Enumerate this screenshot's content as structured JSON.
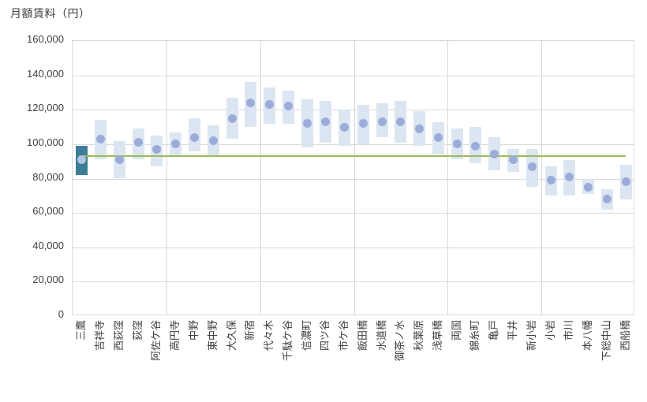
{
  "chart_data": {
    "type": "bar",
    "subtype": "floating-range-bars-with-median-dots",
    "title": "月額賃料（円）",
    "ylabel": "月額賃料（円）",
    "xlabel": "",
    "ylim": [
      0,
      160000
    ],
    "ytick_step": 20000,
    "ytick_labels": [
      "0",
      "20,000",
      "40,000",
      "60,000",
      "80,000",
      "100,000",
      "120,000",
      "140,000",
      "160,000"
    ],
    "grid": true,
    "x_gridline_every": 5,
    "legend_position": "none",
    "categories": [
      "三鷹",
      "吉祥寺",
      "西荻窪",
      "荻窪",
      "阿佐ケ谷",
      "高円寺",
      "中野",
      "東中野",
      "大久保",
      "新宿",
      "代々木",
      "千駄ケ谷",
      "信濃町",
      "四ツ谷",
      "市ケ谷",
      "飯田橋",
      "水道橋",
      "御茶ノ水",
      "秋葉原",
      "浅草橋",
      "両国",
      "錦糸町",
      "亀戸",
      "平井",
      "新小岩",
      "小岩",
      "市川",
      "本八幡",
      "下総中山",
      "西船橋"
    ],
    "series": [
      {
        "name": "range_min",
        "values": [
          82000,
          91000,
          80000,
          91000,
          87000,
          93000,
          96000,
          93000,
          103000,
          110000,
          112000,
          112000,
          98000,
          101000,
          99000,
          100000,
          104000,
          101000,
          99000,
          94000,
          91000,
          89000,
          85000,
          84000,
          75000,
          70000,
          70000,
          71000,
          62000,
          68000
        ]
      },
      {
        "name": "range_max",
        "values": [
          99000,
          114000,
          102000,
          109000,
          105000,
          107000,
          115000,
          111000,
          127000,
          136000,
          133000,
          131000,
          126000,
          125000,
          120000,
          123000,
          124000,
          125000,
          119000,
          113000,
          109000,
          110000,
          104000,
          97000,
          97000,
          87000,
          91000,
          80000,
          74000,
          88000
        ]
      },
      {
        "name": "median",
        "values": [
          91000,
          103000,
          91000,
          101000,
          97000,
          100000,
          104000,
          102000,
          115000,
          124000,
          123000,
          122000,
          112000,
          113000,
          110000,
          112000,
          113000,
          113000,
          109000,
          104000,
          100000,
          99000,
          94000,
          91000,
          87000,
          79000,
          81000,
          75000,
          68000,
          78000
        ]
      }
    ],
    "reference_line": {
      "value": 93000,
      "spans": "first-to-last-category"
    },
    "highlight": {
      "category": "三鷹",
      "index": 0
    },
    "colors": {
      "range_bar": "#dce6f2",
      "median_dot": "#9bacd8",
      "highlight_bar": "#3c7e98",
      "highlight_dot": "#b5c3e2",
      "reference_line": "#9bbb59",
      "gridline": "#d9d9d9",
      "text": "#404040"
    }
  }
}
